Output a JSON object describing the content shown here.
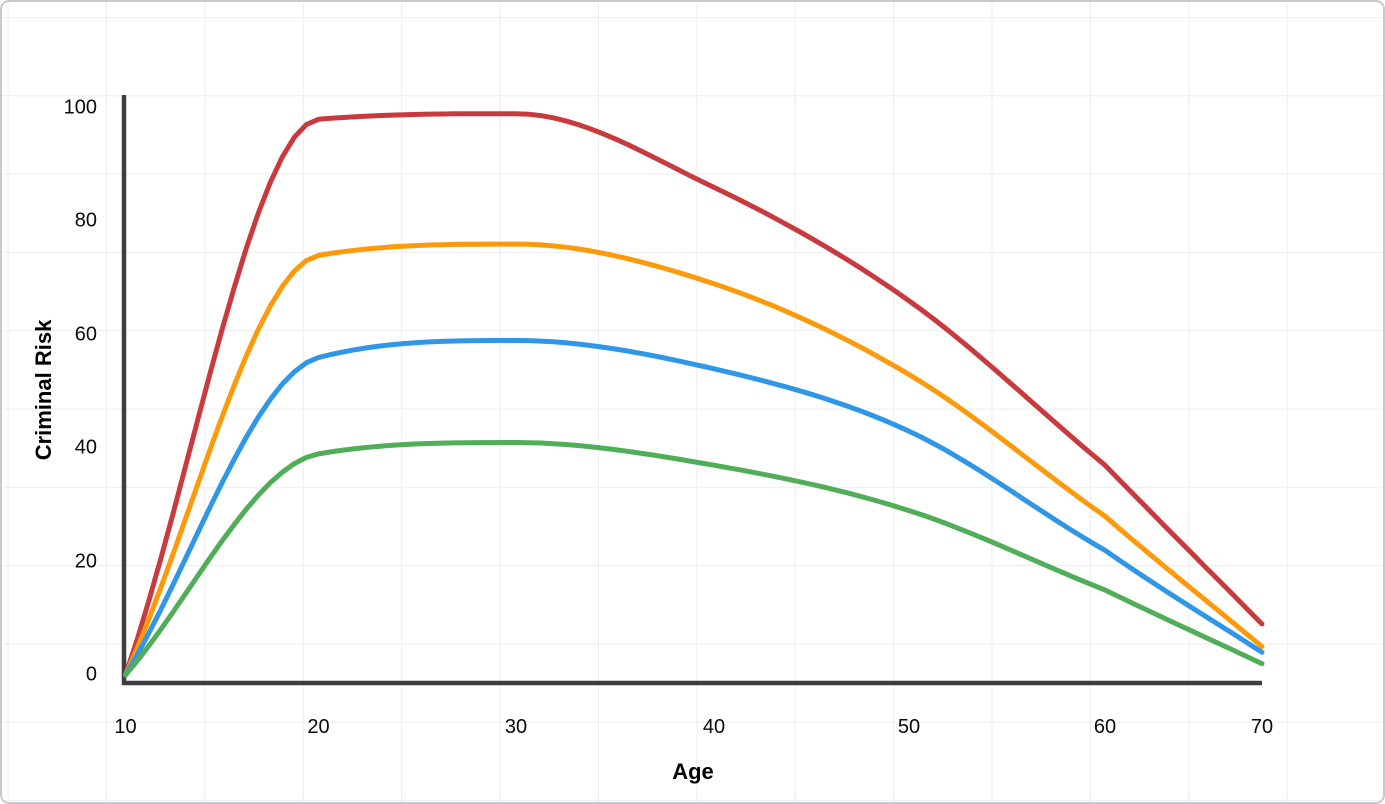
{
  "chart_data": {
    "type": "line",
    "title": "",
    "xlabel": "Age",
    "ylabel": "Criminal Risk",
    "x": [
      10,
      20,
      30,
      40,
      50,
      60,
      70
    ],
    "x_tick_labels": [
      "10",
      "20",
      "30",
      "40",
      "50",
      "60",
      "70"
    ],
    "y_tick_values": [
      0,
      20,
      40,
      60,
      80,
      100
    ],
    "y_tick_labels": [
      "0",
      "20",
      "40",
      "60",
      "80",
      "100"
    ],
    "xlim": [
      10,
      70
    ],
    "ylim": [
      0,
      100
    ],
    "legend": "none",
    "grid": "faint full-canvas background grid, light gray",
    "curve_style": "monotone smooth through points, sharp bend at age 20, straight decline after age 50",
    "axis_color": "#3c3e42",
    "series": [
      {
        "name": "red",
        "color": "#c93a3e",
        "values": [
          0,
          98,
          99,
          86,
          66,
          37,
          9
        ]
      },
      {
        "name": "orange",
        "color": "#fd9a0c",
        "values": [
          0,
          74,
          76,
          69,
          53,
          28,
          5
        ]
      },
      {
        "name": "blue",
        "color": "#2f96e8",
        "values": [
          0,
          56,
          59,
          54,
          43,
          22,
          4
        ]
      },
      {
        "name": "green",
        "color": "#50ad58",
        "values": [
          0,
          39,
          41,
          37,
          29,
          15,
          2
        ]
      }
    ]
  }
}
